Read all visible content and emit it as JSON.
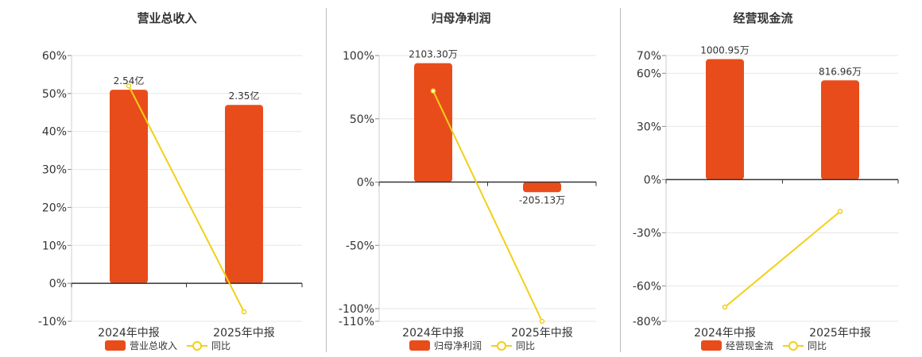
{
  "colors": {
    "bar": "#E94C1B",
    "line": "#F2D018",
    "grid": "#e6e6e6",
    "axis": "#333333",
    "text": "#333333"
  },
  "chart_data": [
    {
      "type": "bar",
      "title": "营业总收入",
      "categories": [
        "2024年中报",
        "2025年中报"
      ],
      "bar_series": {
        "name": "营业总收入",
        "values": [
          51,
          47
        ],
        "labels": [
          "2.54亿",
          "2.35亿"
        ]
      },
      "line_series": {
        "name": "同比",
        "values": [
          52,
          -7.5
        ]
      },
      "y_ticks": [
        -10,
        0,
        10,
        20,
        30,
        40,
        50,
        60
      ],
      "y_tick_labels": [
        "-10%",
        "0%",
        "10%",
        "20%",
        "30%",
        "40%",
        "50%",
        "60%"
      ],
      "ylim": [
        -10,
        60
      ],
      "legend": [
        "营业总收入",
        "同比"
      ],
      "legend_position": "bottom"
    },
    {
      "type": "bar",
      "title": "归母净利润",
      "categories": [
        "2024年中报",
        "2025年中报"
      ],
      "bar_series": {
        "name": "归母净利润",
        "values": [
          94,
          -8
        ],
        "labels": [
          "2103.30万",
          "-205.13万"
        ]
      },
      "line_series": {
        "name": "同比",
        "values": [
          72,
          -110
        ]
      },
      "y_ticks": [
        -110,
        -100,
        -50,
        0,
        50,
        100
      ],
      "y_tick_labels": [
        "-110%",
        "-100%",
        "-50%",
        "0%",
        "50%",
        "100%"
      ],
      "ylim": [
        -110,
        100
      ],
      "legend": [
        "归母净利润",
        "同比"
      ],
      "legend_position": "bottom"
    },
    {
      "type": "bar",
      "title": "经营现金流",
      "categories": [
        "2024年中报",
        "2025年中报"
      ],
      "bar_series": {
        "name": "经营现金流",
        "values": [
          68,
          56
        ],
        "labels": [
          "1000.95万",
          "816.96万"
        ]
      },
      "line_series": {
        "name": "同比",
        "values": [
          -72,
          -18
        ]
      },
      "y_ticks": [
        -80,
        -60,
        -30,
        0,
        30,
        60,
        70
      ],
      "y_tick_labels": [
        "-80%",
        "-60%",
        "-30%",
        "0%",
        "30%",
        "60%",
        "70%"
      ],
      "ylim": [
        -80,
        70
      ],
      "legend": [
        "经营现金流",
        "同比"
      ],
      "legend_position": "bottom"
    }
  ]
}
